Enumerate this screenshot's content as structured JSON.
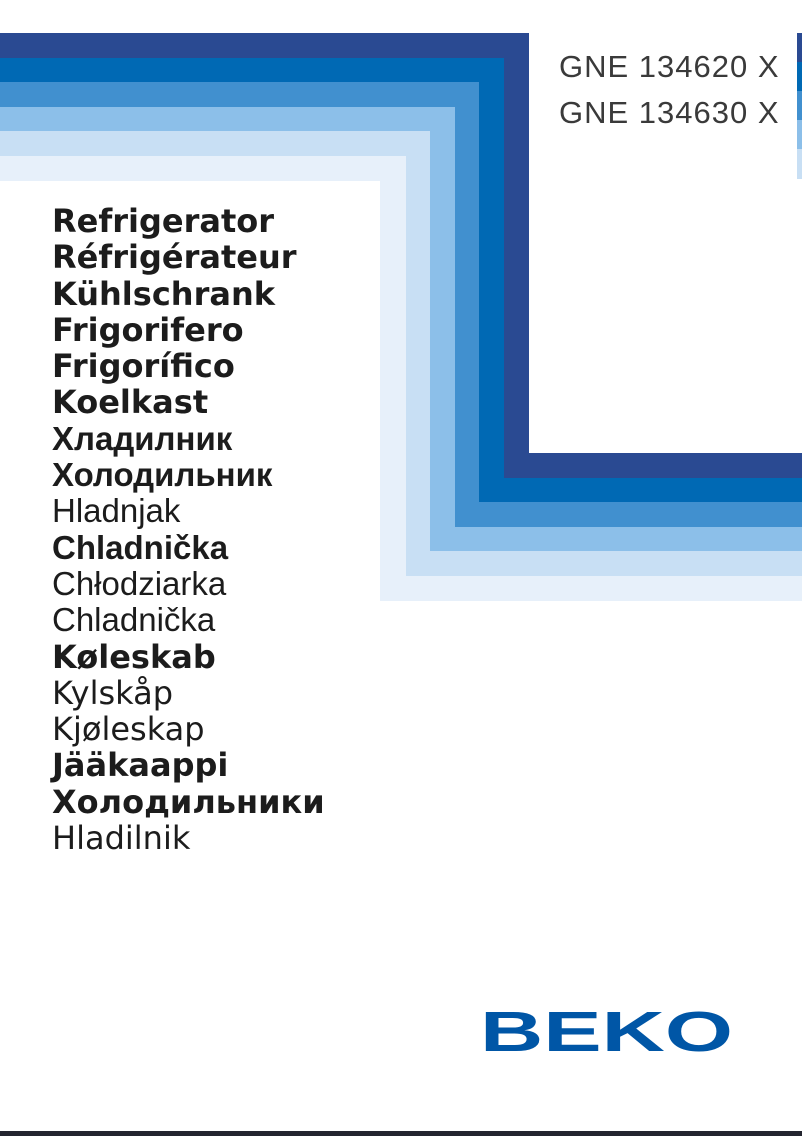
{
  "header": {
    "model_numbers": [
      "GNE 134620 X",
      "GNE 134630 X"
    ]
  },
  "languages": [
    {
      "text": "Refrigerator",
      "weight": 600,
      "font": "humanist"
    },
    {
      "text": "Réfrigérateur",
      "weight": 600,
      "font": "humanist"
    },
    {
      "text": "Kühlschrank",
      "weight": 600,
      "font": "humanist"
    },
    {
      "text": "Frigorifero",
      "weight": 600,
      "font": "humanist"
    },
    {
      "text": "Frigorífico",
      "weight": 600,
      "font": "humanist"
    },
    {
      "text": "Koelkast",
      "weight": 600,
      "font": "humanist"
    },
    {
      "text": "Хладилник",
      "weight": 700,
      "font": "grotesque"
    },
    {
      "text": "Холодильник",
      "weight": 700,
      "font": "grotesque"
    },
    {
      "text": "Hladnjak",
      "weight": 400,
      "font": "grotesque"
    },
    {
      "text": "Chladnička",
      "weight": 700,
      "font": "grotesque"
    },
    {
      "text": "Chłodziarka",
      "weight": 400,
      "font": "grotesque"
    },
    {
      "text": "Chladnička",
      "weight": 400,
      "font": "grotesque"
    },
    {
      "text": "Køleskab",
      "weight": 600,
      "font": "humanist"
    },
    {
      "text": "Kylskåp",
      "weight": 400,
      "font": "humanist"
    },
    {
      "text": "Kjøleskap",
      "weight": 400,
      "font": "humanist"
    },
    {
      "text": "Jääkaappi",
      "weight": 600,
      "font": "humanist"
    },
    {
      "text": "Холодильники",
      "weight": 700,
      "font": "humanist"
    },
    {
      "text": "Hladilnik",
      "weight": 400,
      "font": "humanist"
    }
  ],
  "logo": {
    "text": "BEKO",
    "color": "#0056A6"
  },
  "colors": {
    "bands": [
      "#2A4A92",
      "#0069B4",
      "#4190CF",
      "#8CBFE9",
      "#C8DFF4",
      "#E7F0FA"
    ],
    "footer_bar": "#23252F",
    "list_text": "#1C1C1C",
    "model_text": "#3A3A3A"
  }
}
